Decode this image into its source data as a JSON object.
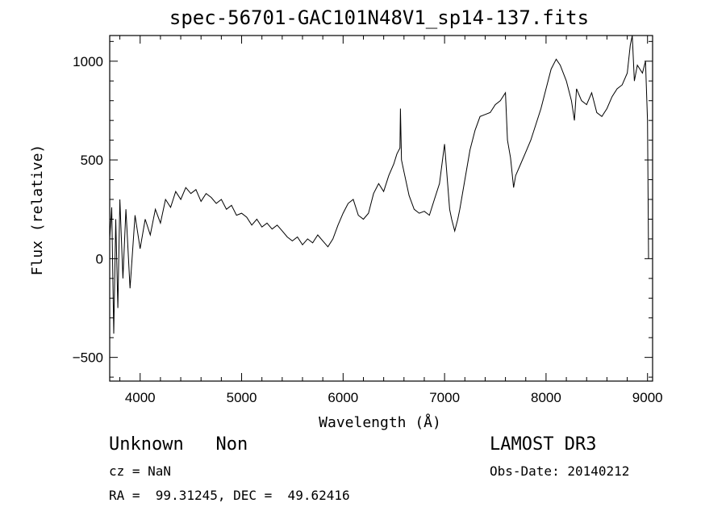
{
  "chart_data": {
    "type": "line",
    "title": "spec-56701-GAC101N48V1_sp14-137.fits",
    "xlabel": "Wavelength (Å)",
    "ylabel": "Flux (relative)",
    "xlim": [
      3700,
      9050
    ],
    "ylim": [
      -620,
      1130
    ],
    "x_ticks": [
      4000,
      5000,
      6000,
      7000,
      8000,
      9000
    ],
    "y_ticks": [
      -500,
      0,
      500,
      1000
    ],
    "grid": false,
    "series": [
      {
        "x": [
          3700,
          3720,
          3740,
          3760,
          3780,
          3800,
          3830,
          3860,
          3900,
          3950,
          4000,
          4050,
          4100,
          4150,
          4200,
          4250,
          4300,
          4350,
          4400,
          4450,
          4500,
          4550,
          4600,
          4650,
          4700,
          4750,
          4800,
          4850,
          4900,
          4950,
          5000,
          5050,
          5100,
          5150,
          5200,
          5250,
          5300,
          5350,
          5400,
          5450,
          5500,
          5550,
          5600,
          5650,
          5700,
          5750,
          5800,
          5850,
          5900,
          5950,
          6000,
          6050,
          6100,
          6150,
          6200,
          6250,
          6300,
          6350,
          6400,
          6450,
          6500,
          6530,
          6560,
          6565,
          6575,
          6600,
          6650,
          6700,
          6750,
          6800,
          6850,
          6900,
          6950,
          7000,
          7050,
          7070,
          7100,
          7130,
          7150,
          7200,
          7250,
          7300,
          7350,
          7400,
          7450,
          7500,
          7550,
          7600,
          7620,
          7650,
          7680,
          7700,
          7750,
          7800,
          7850,
          7900,
          7950,
          8000,
          8050,
          8100,
          8140,
          8200,
          8250,
          8280,
          8300,
          8350,
          8400,
          8450,
          8500,
          8550,
          8600,
          8650,
          8700,
          8750,
          8800,
          8830,
          8850,
          8870,
          8900,
          8950,
          8980,
          9000,
          9010
        ],
        "y": [
          100,
          260,
          -380,
          200,
          -250,
          300,
          -100,
          250,
          -150,
          220,
          50,
          200,
          120,
          250,
          180,
          300,
          260,
          340,
          300,
          360,
          330,
          350,
          290,
          330,
          310,
          280,
          300,
          250,
          270,
          220,
          230,
          210,
          170,
          200,
          160,
          180,
          150,
          170,
          140,
          110,
          90,
          110,
          70,
          100,
          80,
          120,
          90,
          60,
          100,
          170,
          230,
          280,
          300,
          220,
          200,
          230,
          330,
          380,
          340,
          420,
          480,
          530,
          560,
          760,
          500,
          440,
          320,
          250,
          230,
          240,
          220,
          300,
          380,
          580,
          250,
          200,
          140,
          200,
          250,
          400,
          550,
          650,
          720,
          730,
          740,
          780,
          800,
          840,
          600,
          510,
          360,
          420,
          480,
          540,
          600,
          680,
          760,
          860,
          960,
          1010,
          980,
          900,
          800,
          700,
          860,
          800,
          780,
          840,
          740,
          720,
          760,
          820,
          860,
          880,
          940,
          1080,
          1130,
          900,
          980,
          940,
          1000,
          700,
          0
        ]
      }
    ]
  },
  "labels": {
    "object": "Unknown   Non",
    "survey": "LAMOST DR3",
    "cz": "cz = NaN",
    "obs_date": "Obs-Date: 20140212",
    "coords": "RA =  99.31245, DEC =  49.62416"
  }
}
